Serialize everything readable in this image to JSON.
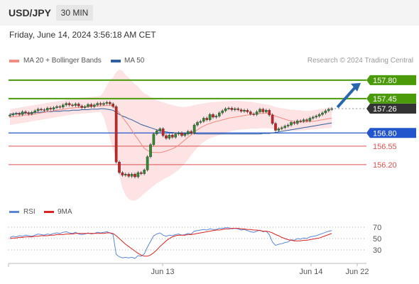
{
  "header": {
    "symbol": "USD/JPY",
    "timeframe": "30 MIN"
  },
  "datetime": "Friday, June 14, 2024 3:56:18 AM CET",
  "legend": {
    "ma20": {
      "label": "MA 20 + Bollinger Bands",
      "color": "#f28b82"
    },
    "ma50": {
      "label": "MA 50",
      "color": "#2f5f9e"
    }
  },
  "credit": "Research © 2024 Trading Central",
  "colors": {
    "up": "#2e8b2e",
    "down": "#cc2222",
    "resistance": "#4a9a0a",
    "support_blue": "#2255cc",
    "support_red": "#e05050",
    "band_fill": "#fde3e3",
    "rsi": "#5b86d6",
    "rsi_ma": "#dd2222",
    "arrow": "#2866b0"
  },
  "chart_data": [
    {
      "type": "candlestick",
      "y_range": [
        155.5,
        158.0
      ],
      "x_labels": [
        "Jun 13",
        "Jun 14",
        "Jun 22"
      ],
      "price_levels": [
        {
          "value": 157.8,
          "label": "157.80",
          "kind": "resistance"
        },
        {
          "value": 157.45,
          "label": "157.45",
          "kind": "resistance"
        },
        {
          "value": 157.26,
          "label": "157.26",
          "kind": "last"
        },
        {
          "value": 156.8,
          "label": "156.80",
          "kind": "pivot"
        },
        {
          "value": 156.55,
          "label": "156.55",
          "kind": "support"
        },
        {
          "value": 156.2,
          "label": "156.20",
          "kind": "support"
        }
      ],
      "close": [
        157.14,
        157.16,
        157.17,
        157.15,
        157.2,
        157.18,
        157.16,
        157.19,
        157.22,
        157.25,
        157.24,
        157.23,
        157.27,
        157.25,
        157.28,
        157.3,
        157.29,
        157.33,
        157.36,
        157.33,
        157.32,
        157.35,
        157.31,
        157.28,
        157.3,
        157.34,
        157.3,
        157.33,
        157.36,
        157.34,
        157.36,
        157.38,
        157.35,
        157.3,
        156.25,
        156.05,
        156.0,
        156.02,
        155.98,
        156.02,
        155.97,
        156.05,
        156.03,
        156.1,
        156.35,
        156.58,
        156.78,
        156.84,
        156.88,
        156.75,
        156.7,
        156.76,
        156.72,
        156.78,
        156.8,
        156.75,
        156.78,
        156.83,
        156.8,
        156.95,
        157.0,
        157.02,
        157.08,
        157.05,
        157.15,
        157.1,
        157.12,
        157.18,
        157.22,
        157.26,
        157.27,
        157.24,
        157.26,
        157.24,
        157.21,
        157.23,
        157.2,
        157.16,
        157.15,
        157.2,
        157.25,
        157.2,
        157.23,
        157.14,
        156.98,
        156.85,
        156.88,
        156.9,
        156.93,
        156.95,
        157.0,
        156.98,
        157.03,
        157.02,
        157.05,
        157.03,
        157.08,
        157.1,
        157.12,
        157.15,
        157.18,
        157.22,
        157.25,
        157.26
      ],
      "ma20": [
        157.1,
        157.11,
        157.11,
        157.12,
        157.13,
        157.14,
        157.14,
        157.15,
        157.16,
        157.17,
        157.18,
        157.19,
        157.2,
        157.21,
        157.22,
        157.23,
        157.24,
        157.25,
        157.26,
        157.27,
        157.27,
        157.28,
        157.28,
        157.29,
        157.29,
        157.3,
        157.3,
        157.31,
        157.31,
        157.31,
        157.32,
        157.32,
        157.32,
        157.32,
        157.24,
        157.18,
        157.1,
        157.02,
        156.94,
        156.85,
        156.76,
        156.68,
        156.59,
        156.51,
        156.47,
        156.44,
        156.43,
        156.43,
        156.43,
        156.44,
        156.46,
        156.48,
        156.5,
        156.53,
        156.57,
        156.62,
        156.67,
        156.72,
        156.76,
        156.82,
        156.86,
        156.9,
        156.93,
        156.96,
        156.98,
        157.0,
        157.02,
        157.03,
        157.05,
        157.06,
        157.08,
        157.09,
        157.1,
        157.11,
        157.12,
        157.13,
        157.14,
        157.15,
        157.15,
        157.16,
        157.17,
        157.17,
        157.18,
        157.17,
        157.15,
        157.12,
        157.1,
        157.08,
        157.06,
        157.04,
        157.03,
        157.02,
        157.01,
        157.01,
        157.01,
        157.01,
        157.02,
        157.02,
        157.03,
        157.04,
        157.05,
        157.06,
        157.07,
        157.08
      ],
      "ma50": [
        157.16,
        157.16,
        157.17,
        157.17,
        157.17,
        157.18,
        157.18,
        157.18,
        157.19,
        157.19,
        157.19,
        157.2,
        157.2,
        157.2,
        157.21,
        157.21,
        157.21,
        157.22,
        157.22,
        157.22,
        157.23,
        157.23,
        157.23,
        157.24,
        157.24,
        157.24,
        157.25,
        157.25,
        157.25,
        157.26,
        157.26,
        157.25,
        157.24,
        157.23,
        157.19,
        157.15,
        157.12,
        157.1,
        157.07,
        157.05,
        157.02,
        156.99,
        156.96,
        156.94,
        156.92,
        156.9,
        156.88,
        156.86,
        156.84,
        156.83,
        156.82,
        156.81,
        156.81,
        156.8,
        156.79,
        156.79,
        156.79,
        156.79,
        156.79,
        156.79,
        156.78,
        156.78,
        156.78,
        156.78,
        156.78,
        156.78,
        156.78,
        156.78,
        156.78,
        156.78,
        156.78,
        156.78,
        156.78,
        156.78,
        156.78,
        156.78,
        156.78,
        156.78,
        156.78,
        156.78,
        156.78,
        156.79,
        156.79,
        156.79,
        156.8,
        156.81,
        156.82,
        156.83,
        156.84,
        156.85,
        156.86,
        156.87,
        156.88,
        156.89,
        156.9,
        156.91,
        156.92,
        156.93,
        156.94,
        156.95,
        156.96,
        156.97,
        156.98,
        156.99
      ],
      "bb_upper": [
        157.25,
        157.26,
        157.27,
        157.28,
        157.29,
        157.3,
        157.31,
        157.32,
        157.33,
        157.34,
        157.35,
        157.36,
        157.37,
        157.38,
        157.39,
        157.4,
        157.41,
        157.42,
        157.43,
        157.44,
        157.45,
        157.46,
        157.46,
        157.47,
        157.47,
        157.48,
        157.48,
        157.49,
        157.49,
        157.5,
        157.58,
        157.7,
        157.8,
        157.85,
        157.95,
        158.0,
        157.98,
        157.9,
        157.85,
        157.78,
        157.72,
        157.68,
        157.6,
        157.55,
        157.52,
        157.48,
        157.45,
        157.42,
        157.4,
        157.38,
        157.36,
        157.34,
        157.33,
        157.31,
        157.3,
        157.29,
        157.29,
        157.3,
        157.31,
        157.33,
        157.34,
        157.35,
        157.36,
        157.37,
        157.38,
        157.38,
        157.39,
        157.39,
        157.4,
        157.4,
        157.4,
        157.41,
        157.41,
        157.41,
        157.4,
        157.4,
        157.39,
        157.39,
        157.38,
        157.37,
        157.36,
        157.35,
        157.34,
        157.33,
        157.31,
        157.29,
        157.28,
        157.27,
        157.26,
        157.25,
        157.24,
        157.24,
        157.23,
        157.23,
        157.22,
        157.22,
        157.22,
        157.23,
        157.24,
        157.25,
        157.26,
        157.27,
        157.28,
        157.29
      ],
      "bb_lower": [
        156.95,
        156.96,
        156.97,
        156.98,
        156.99,
        157.0,
        157.01,
        157.02,
        157.03,
        157.04,
        157.05,
        157.06,
        157.07,
        157.08,
        157.09,
        157.1,
        157.11,
        157.12,
        157.13,
        157.14,
        157.15,
        157.16,
        157.16,
        157.17,
        157.17,
        157.18,
        157.18,
        157.19,
        157.19,
        157.2,
        157.1,
        156.9,
        156.7,
        156.5,
        156.3,
        156.0,
        155.75,
        155.62,
        155.55,
        155.52,
        155.52,
        155.55,
        155.6,
        155.65,
        155.7,
        155.75,
        155.8,
        155.85,
        155.88,
        155.92,
        155.95,
        155.98,
        156.02,
        156.06,
        156.1,
        156.16,
        156.22,
        156.3,
        156.38,
        156.46,
        156.52,
        156.58,
        156.63,
        156.67,
        156.7,
        156.72,
        156.74,
        156.76,
        156.78,
        156.8,
        156.82,
        156.84,
        156.85,
        156.86,
        156.86,
        156.87,
        156.87,
        156.88,
        156.88,
        156.88,
        156.89,
        156.89,
        156.89,
        156.89,
        156.88,
        156.87,
        156.86,
        156.85,
        156.84,
        156.84,
        156.84,
        156.84,
        156.84,
        156.85,
        156.85,
        156.86,
        156.86,
        156.87,
        156.87,
        156.88,
        156.88,
        156.89,
        156.89,
        156.9
      ]
    },
    {
      "type": "line",
      "title": "RSI",
      "y_range": [
        10,
        80
      ],
      "y_ticks": [
        70,
        50,
        30
      ],
      "series": [
        {
          "name": "RSI",
          "values": [
            52,
            54,
            53,
            55,
            54,
            56,
            55,
            54,
            56,
            58,
            57,
            56,
            58,
            57,
            59,
            60,
            59,
            61,
            62,
            60,
            59,
            61,
            58,
            57,
            58,
            60,
            58,
            59,
            61,
            60,
            61,
            62,
            60,
            57,
            22,
            18,
            16,
            17,
            16,
            17,
            15,
            20,
            19,
            23,
            35,
            45,
            55,
            58,
            60,
            56,
            54,
            56,
            55,
            57,
            58,
            56,
            57,
            59,
            58,
            63,
            64,
            65,
            66,
            65,
            67,
            66,
            66,
            68,
            68,
            69,
            69,
            67,
            68,
            67,
            65,
            66,
            64,
            62,
            61,
            63,
            65,
            62,
            63,
            57,
            44,
            38,
            40,
            41,
            43,
            44,
            48,
            47,
            50,
            49,
            51,
            50,
            53,
            54,
            55,
            57,
            59,
            61,
            63,
            64
          ]
        },
        {
          "name": "9MA",
          "values": [
            50,
            51,
            51,
            52,
            52,
            53,
            53,
            53,
            54,
            54,
            55,
            55,
            55,
            56,
            56,
            57,
            57,
            57,
            58,
            58,
            58,
            59,
            59,
            59,
            59,
            59,
            59,
            59,
            59,
            59,
            59,
            60,
            60,
            59,
            55,
            50,
            45,
            40,
            36,
            32,
            28,
            24,
            21,
            19,
            19,
            21,
            25,
            30,
            36,
            41,
            46,
            50,
            53,
            55,
            56,
            56,
            56,
            57,
            57,
            58,
            59,
            60,
            61,
            62,
            63,
            64,
            65,
            65,
            66,
            67,
            67,
            68,
            68,
            68,
            67,
            67,
            66,
            66,
            65,
            65,
            64,
            63,
            63,
            62,
            60,
            57,
            55,
            52,
            50,
            48,
            47,
            46,
            46,
            46,
            47,
            47,
            48,
            49,
            50,
            51,
            53,
            55,
            57,
            59
          ]
        }
      ]
    }
  ]
}
